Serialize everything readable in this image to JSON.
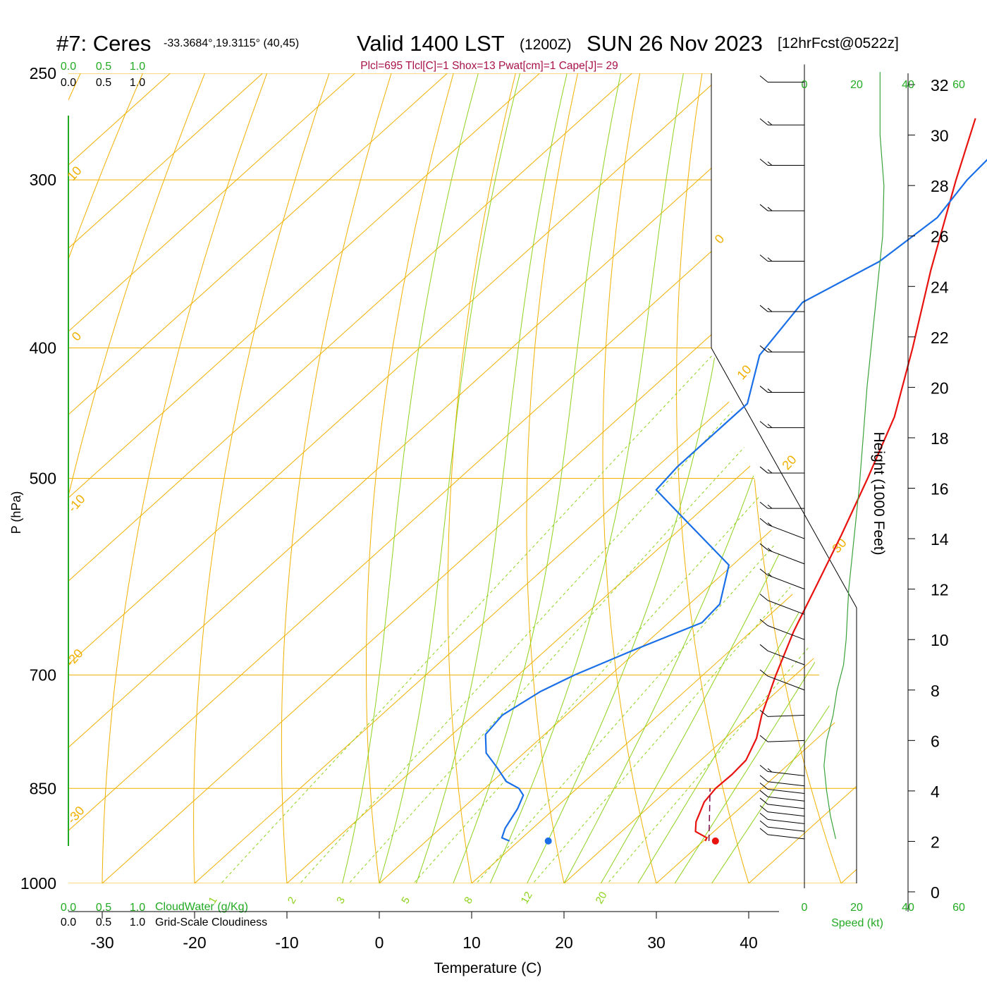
{
  "header": {
    "station": "#7: Ceres",
    "coords": "-33.3684°,19.3115° (40,45)",
    "valid": "Valid 1400 LST",
    "zulu": "(1200Z)",
    "date": "SUN 26 Nov 2023",
    "forecast": "[12hrFcst@0522z]",
    "indices": "Plcl=695 Tlcl[C]=1 Shox=13 Pwat[cm]=1 Cape[J]= 29"
  },
  "colors": {
    "temperature": "#e8120e",
    "dewpoint": "#1a6fe8",
    "isotherm_isobar": "#f0b000",
    "dry_adiabat": "#9dc81f",
    "moist_adiabat": "#8ed21c",
    "mixing_ratio": "#8ed21c",
    "parcel": "#7a0a4a",
    "height_profile": "#3aa33a",
    "indices_text": "#a8124a",
    "scale_green": "#22aa22"
  },
  "cloud_scales": {
    "top_green": [
      "0.0",
      "0.5",
      "1.0"
    ],
    "top_black": [
      "0.0",
      "0.5",
      "1.0"
    ],
    "bottom_green": [
      "0.0",
      "0.5",
      "1.0"
    ],
    "bottom_black": [
      "0.0",
      "0.5",
      "1.0"
    ],
    "cloudwater_label": "CloudWater (g/Kg)",
    "cloudiness_label": "Grid-Scale Cloudiness"
  },
  "wind_panel": {
    "speed_ticks_top": [
      "0",
      "20",
      "40",
      "60"
    ],
    "speed_ticks_bottom": [
      "0",
      "20",
      "40",
      "60"
    ],
    "speed_label": "Speed (kt)",
    "height_label": "Height (1000 Feet)",
    "height_ticks": [
      "0",
      "2",
      "4",
      "6",
      "8",
      "10",
      "12",
      "14",
      "16",
      "18",
      "20",
      "22",
      "24",
      "26",
      "28",
      "30",
      "32"
    ]
  },
  "chart_data": {
    "type": "line",
    "title": "#7: Ceres",
    "xlabel": "Temperature (C)",
    "ylabel": "P (hPa)",
    "x_ticks": [
      "-30",
      "-20",
      "-10",
      "0",
      "10",
      "20",
      "30",
      "40"
    ],
    "pressure_ticks": [
      "250",
      "300",
      "400",
      "500",
      "700",
      "850",
      "1000"
    ],
    "pressure_levels": [
      250,
      300,
      400,
      500,
      700,
      850,
      1000
    ],
    "skew_isotherm_labels": [
      "10",
      "0",
      "-10",
      "-20",
      "-30",
      "0",
      "10",
      "20",
      "30"
    ],
    "mixing_ratio_labels": [
      "1",
      "2",
      "3",
      "5",
      "8",
      "12",
      "20"
    ],
    "series": [
      {
        "key": "temperature",
        "points": [
          [
            930,
            30.2
          ],
          [
            925,
            30.0
          ],
          [
            915,
            28.0
          ],
          [
            900,
            26.9
          ],
          [
            870,
            25.4
          ],
          [
            850,
            25.0
          ],
          [
            830,
            25.1
          ],
          [
            810,
            24.9
          ],
          [
            780,
            23.4
          ],
          [
            750,
            21.2
          ],
          [
            700,
            17.9
          ],
          [
            650,
            14.6
          ],
          [
            600,
            11.5
          ],
          [
            550,
            8.1
          ],
          [
            500,
            4.2
          ],
          [
            450,
            -0.3
          ],
          [
            400,
            -6.6
          ],
          [
            350,
            -14.0
          ],
          [
            300,
            -22.1
          ],
          [
            270,
            -27.4
          ]
        ]
      },
      {
        "key": "dewpoint",
        "points": [
          [
            930,
            9.0
          ],
          [
            925,
            7.8
          ],
          [
            910,
            7.0
          ],
          [
            880,
            6.0
          ],
          [
            860,
            5.0
          ],
          [
            850,
            3.7
          ],
          [
            840,
            1.5
          ],
          [
            820,
            -1.2
          ],
          [
            800,
            -4.1
          ],
          [
            775,
            -6.4
          ],
          [
            750,
            -6.9
          ],
          [
            720,
            -5.6
          ],
          [
            700,
            -3.9
          ],
          [
            670,
            -0.4
          ],
          [
            640,
            3.6
          ],
          [
            620,
            3.3
          ],
          [
            580,
            -0.4
          ],
          [
            540,
            -9.8
          ],
          [
            510,
            -17.3
          ],
          [
            490,
            -17.8
          ],
          [
            440,
            -17.8
          ],
          [
            405,
            -22.3
          ],
          [
            370,
            -24.0
          ],
          [
            345,
            -20.6
          ],
          [
            320,
            -19.6
          ],
          [
            300,
            -20.9
          ],
          [
            280,
            -21.4
          ],
          [
            270,
            -21.5
          ]
        ]
      },
      {
        "key": "parcel",
        "points": [
          [
            930,
            30.6
          ],
          [
            850,
            24.4
          ]
        ]
      }
    ],
    "surface_markers": {
      "temperature": [
        930,
        31.3
      ],
      "dewpoint": [
        930,
        13.2
      ]
    },
    "wind_profile": {
      "heights_kft": [
        2.1,
        2.4,
        2.7,
        3.0,
        3.3,
        3.6,
        3.9,
        4.2,
        4.6,
        6.0,
        7.0,
        8.0,
        9.0,
        10.0,
        11.0,
        12.0,
        13.0,
        14.0,
        15.2,
        16.6,
        18.4,
        19.8,
        21.4,
        23.0,
        25.0,
        27.0,
        28.8,
        30.4,
        32.1
      ],
      "speed_kt": [
        13,
        13,
        13,
        13,
        13,
        13,
        14,
        14,
        15,
        12,
        11,
        10,
        11,
        12,
        14,
        15,
        16,
        17,
        16,
        16,
        16,
        16,
        17,
        17,
        17,
        18,
        17,
        15,
        14
      ],
      "height_profile_kft": [
        2.1,
        3.0,
        4.0,
        5.0,
        6.0,
        7.0,
        8.0,
        9.0,
        10.0,
        11.0,
        12.0,
        13.0,
        14.0,
        16.0,
        18.0,
        20.0,
        22.0,
        24.0,
        26.0,
        28.0,
        30.0,
        32.0,
        32.5
      ],
      "height_profile_speed": [
        12,
        10,
        8.5,
        7.5,
        8.5,
        11,
        12.5,
        15,
        16,
        16.5,
        17,
        18,
        19,
        21,
        22.5,
        24,
        26,
        28,
        30,
        30.5,
        29,
        29,
        29
      ]
    }
  }
}
